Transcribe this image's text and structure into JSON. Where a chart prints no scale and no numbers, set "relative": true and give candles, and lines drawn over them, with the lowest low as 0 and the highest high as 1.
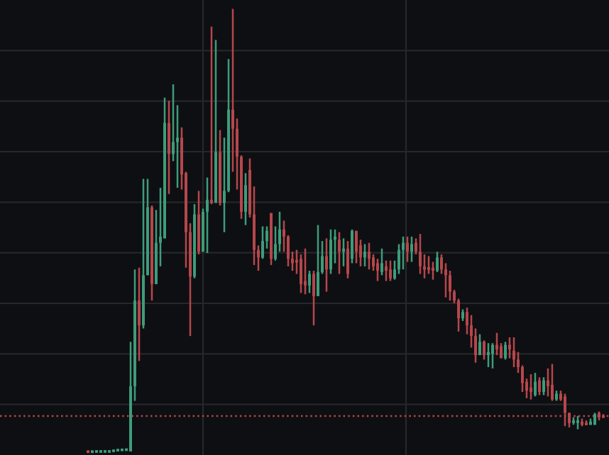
{
  "chart_data": {
    "type": "candlestick",
    "relative": true,
    "grid": true,
    "colors": [
      "#b5474b",
      "#3e9c7a",
      "#3e9c7a",
      "#3e9c7a",
      "#3e9c7a",
      "#3e9c7a",
      "#3e9c7a",
      "#3e9c7a",
      "#3e9c7a",
      "#3e9c7a",
      "#3e9c7a",
      "#3e9c7a",
      "#b5474b",
      "#3e9c7a",
      "#3e9c7a",
      "#b5474b",
      "#3e9c7a",
      "#3e9c7a",
      "#3e9c7a",
      "#b5474b",
      "#3e9c7a",
      "#3e9c7a",
      "#b5474b",
      "#b5474b",
      "#b5474b",
      "#3e9c7a",
      "#b5474b",
      "#3e9c7a",
      "#3e9c7a",
      "#b5474b",
      "#3e9c7a",
      "#b5474b",
      "#3e9c7a",
      "#3e9c7a",
      "#b5474b",
      "#b5474b",
      "#b5474b",
      "#3e9c7a",
      "#b5474b",
      "#b5474b",
      "#b5474b",
      "#3e9c7a",
      "#3e9c7a",
      "#b5474b",
      "#3e9c7a",
      "#3e9c7a",
      "#b5474b",
      "#b5474b",
      "#b5474b",
      "#b5474b",
      "#b5474b",
      "#b5474b",
      "#3e9c7a",
      "#b5474b",
      "#3e9c7a",
      "#3e9c7a",
      "#b5474b",
      "#3e9c7a",
      "#3e9c7a",
      "#b5474b",
      "#3e9c7a",
      "#b5474b",
      "#3e9c7a",
      "#b5474b",
      "#b5474b",
      "#3e9c7a",
      "#b5474b",
      "#b5474b",
      "#b5474b",
      "#3e9c7a",
      "#b5474b",
      "#b5474b",
      "#3e9c7a",
      "#3e9c7a",
      "#3e9c7a",
      "#b5474b",
      "#3e9c7a",
      "#b5474b",
      "#b5474b",
      "#b5474b",
      "#b5474b",
      "#b5474b",
      "#3e9c7a",
      "#b5474b",
      "#b5474b",
      "#b5474b",
      "#b5474b",
      "#b5474b",
      "#3e9c7a",
      "#b5474b",
      "#b5474b",
      "#b5474b",
      "#3e9c7a",
      "#b5474b",
      "#3e9c7a",
      "#3e9c7a",
      "#b5474b",
      "#b5474b",
      "#3e9c7a",
      "#b5474b",
      "#b5474b",
      "#b5474b",
      "#b5474b",
      "#b5474b",
      "#b5474b",
      "#3e9c7a",
      "#b5474b",
      "#3e9c7a",
      "#b5474b",
      "#b5474b",
      "#3e9c7a",
      "#b5474b",
      "#b5474b",
      "#b5474b",
      "#3e9c7a",
      "#3e9c7a",
      "#b5474b",
      "#b5474b",
      "#3e9c7a",
      "#3e9c7a",
      "#b5474b",
      "#b5474b"
    ],
    "categories": [
      null,
      null,
      null,
      null,
      null,
      null,
      null,
      null,
      null,
      null,
      null,
      null,
      null,
      null,
      null,
      null,
      null,
      null,
      null,
      null,
      null,
      null,
      null,
      null,
      null,
      null,
      null,
      null,
      null,
      null,
      null,
      null,
      null,
      null,
      null,
      null,
      null,
      null,
      null,
      null,
      null,
      null,
      null,
      null,
      null,
      null,
      null,
      null,
      null,
      null,
      null,
      null,
      null,
      null,
      null,
      null,
      null,
      null,
      null,
      null,
      null,
      null,
      null,
      null,
      null,
      null,
      null,
      null,
      null,
      null,
      null,
      null,
      null,
      null,
      null,
      null,
      null,
      null,
      null,
      null,
      null,
      null,
      null,
      null,
      null,
      null,
      null,
      null,
      null,
      null,
      null,
      null,
      null,
      null,
      null,
      null,
      null,
      null,
      null,
      null,
      null,
      null,
      null,
      null,
      null,
      null,
      null,
      null,
      null,
      null,
      null,
      null,
      null,
      null,
      null,
      null,
      null,
      null,
      null,
      null,
      null,
      null
    ],
    "ohlc": [
      [
        0.003,
        0.005,
        0,
        0.002
      ],
      [
        0.002,
        0.005,
        0.002,
        0.003
      ],
      [
        0.003,
        0.005,
        0.002,
        0.003
      ],
      [
        0.003,
        0.005,
        0.002,
        0.003
      ],
      [
        0.003,
        0.005,
        0.002,
        0.003
      ],
      [
        0.003,
        0.005,
        0.002,
        0.003
      ],
      [
        0.003,
        0.006,
        0.003,
        0.006
      ],
      [
        0.006,
        0.007,
        0.005,
        0.006
      ],
      [
        0.006,
        0.007,
        0.005,
        0.007
      ],
      [
        0.007,
        0.008,
        0.006,
        0.007
      ],
      [
        0.003,
        0.25,
        0.003,
        0.15
      ],
      [
        0.15,
        0.413,
        0.117,
        0.343
      ],
      [
        0.343,
        0.417,
        0.207,
        0.287
      ],
      [
        0.287,
        0.617,
        0.28,
        0.4
      ],
      [
        0.4,
        0.617,
        0.4,
        0.553
      ],
      [
        0.553,
        0.557,
        0.343,
        0.38
      ],
      [
        0.38,
        0.547,
        0.38,
        0.473
      ],
      [
        0.473,
        0.597,
        0.42,
        0.487
      ],
      [
        0.483,
        0.8,
        0.483,
        0.743
      ],
      [
        0.743,
        0.793,
        0.583,
        0.673
      ],
      [
        0.673,
        0.83,
        0.657,
        0.7
      ],
      [
        0.7,
        0.783,
        0.597,
        0.71
      ],
      [
        0.71,
        0.733,
        0.593,
        0.627
      ],
      [
        0.63,
        0.633,
        0.417,
        0.497
      ],
      [
        0.497,
        0.517,
        0.263,
        0.397
      ],
      [
        0.397,
        0.56,
        0.393,
        0.537
      ],
      [
        0.537,
        0.59,
        0.447,
        0.453
      ],
      [
        0.453,
        0.55,
        0.453,
        0.543
      ],
      [
        0.543,
        0.62,
        0.45,
        0.57
      ],
      [
        0.57,
        0.96,
        0.56,
        0.563
      ],
      [
        0.563,
        0.93,
        0.563,
        0.677
      ],
      [
        0.677,
        0.727,
        0.557,
        0.563
      ],
      [
        0.563,
        0.71,
        0.497,
        0.59
      ],
      [
        0.59,
        0.887,
        0.587,
        0.773
      ],
      [
        0.773,
        1,
        0.633,
        0.73
      ],
      [
        0.73,
        0.753,
        0.593,
        0.667
      ],
      [
        0.667,
        0.67,
        0.527,
        0.543
      ],
      [
        0.543,
        0.63,
        0.513,
        0.603
      ],
      [
        0.637,
        0.663,
        0.53,
        0.537
      ],
      [
        0.537,
        0.6,
        0.423,
        0.457
      ],
      [
        0.457,
        0.467,
        0.41,
        0.44
      ],
      [
        0.44,
        0.51,
        0.437,
        0.477
      ],
      [
        0.477,
        0.51,
        0.46,
        0.5
      ],
      [
        0.54,
        0.54,
        0.423,
        0.437
      ],
      [
        0.437,
        0.51,
        0.433,
        0.47
      ],
      [
        0.47,
        0.543,
        0.453,
        0.503
      ],
      [
        0.503,
        0.523,
        0.453,
        0.487
      ],
      [
        0.487,
        0.49,
        0.42,
        0.437
      ],
      [
        0.437,
        0.453,
        0.41,
        0.427
      ],
      [
        0.433,
        0.457,
        0.403,
        0.43
      ],
      [
        0.437,
        0.447,
        0.36,
        0.38
      ],
      [
        0.387,
        0.46,
        0.357,
        0.377
      ],
      [
        0.377,
        0.41,
        0.36,
        0.403
      ],
      [
        0.403,
        0.41,
        0.287,
        0.353
      ],
      [
        0.353,
        0.513,
        0.353,
        0.407
      ],
      [
        0.407,
        0.477,
        0.403,
        0.443
      ],
      [
        0.443,
        0.483,
        0.363,
        0.413
      ],
      [
        0.413,
        0.503,
        0.403,
        0.48
      ],
      [
        0.48,
        0.503,
        0.427,
        0.487
      ],
      [
        0.48,
        0.497,
        0.403,
        0.453
      ],
      [
        0.453,
        0.483,
        0.42,
        0.46
      ],
      [
        0.46,
        0.477,
        0.393,
        0.403
      ],
      [
        0.437,
        0.503,
        0.427,
        0.5
      ],
      [
        0.5,
        0.5,
        0.427,
        0.453
      ],
      [
        0.467,
        0.48,
        0.42,
        0.44
      ],
      [
        0.44,
        0.47,
        0.42,
        0.453
      ],
      [
        0.453,
        0.473,
        0.413,
        0.437
      ],
      [
        0.44,
        0.447,
        0.41,
        0.42
      ],
      [
        0.427,
        0.437,
        0.387,
        0.41
      ],
      [
        0.407,
        0.46,
        0.4,
        0.427
      ],
      [
        0.42,
        0.433,
        0.387,
        0.41
      ],
      [
        0.413,
        0.433,
        0.387,
        0.393
      ],
      [
        0.393,
        0.433,
        0.39,
        0.413
      ],
      [
        0.413,
        0.47,
        0.403,
        0.457
      ],
      [
        0.457,
        0.487,
        0.413,
        0.473
      ],
      [
        0.473,
        0.487,
        0.43,
        0.453
      ],
      [
        0.453,
        0.487,
        0.43,
        0.47
      ],
      [
        0.473,
        0.483,
        0.447,
        0.453
      ],
      [
        0.453,
        0.493,
        0.403,
        0.42
      ],
      [
        0.42,
        0.447,
        0.393,
        0.413
      ],
      [
        0.417,
        0.443,
        0.403,
        0.413
      ],
      [
        0.417,
        0.43,
        0.39,
        0.41
      ],
      [
        0.41,
        0.453,
        0.407,
        0.44
      ],
      [
        0.44,
        0.447,
        0.403,
        0.413
      ],
      [
        0.413,
        0.427,
        0.35,
        0.4
      ],
      [
        0.4,
        0.41,
        0.343,
        0.363
      ],
      [
        0.363,
        0.367,
        0.337,
        0.343
      ],
      [
        0.343,
        0.347,
        0.273,
        0.303
      ],
      [
        0.303,
        0.323,
        0.297,
        0.317
      ],
      [
        0.317,
        0.327,
        0.267,
        0.287
      ],
      [
        0.287,
        0.31,
        0.237,
        0.263
      ],
      [
        0.263,
        0.28,
        0.203,
        0.22
      ],
      [
        0.22,
        0.267,
        0.22,
        0.25
      ],
      [
        0.25,
        0.253,
        0.21,
        0.22
      ],
      [
        0.22,
        0.247,
        0.193,
        0.227
      ],
      [
        0.223,
        0.247,
        0.19,
        0.243
      ],
      [
        0.243,
        0.27,
        0.22,
        0.233
      ],
      [
        0.24,
        0.247,
        0.213,
        0.213
      ],
      [
        0.213,
        0.25,
        0.21,
        0.243
      ],
      [
        0.243,
        0.26,
        0.213,
        0.233
      ],
      [
        0.23,
        0.26,
        0.193,
        0.21
      ],
      [
        0.21,
        0.227,
        0.18,
        0.193
      ],
      [
        0.193,
        0.197,
        0.137,
        0.157
      ],
      [
        0.16,
        0.167,
        0.123,
        0.14
      ],
      [
        0.147,
        0.177,
        0.12,
        0.137
      ],
      [
        0.13,
        0.18,
        0.127,
        0.16
      ],
      [
        0.163,
        0.17,
        0.13,
        0.137
      ],
      [
        0.137,
        0.17,
        0.13,
        0.163
      ],
      [
        0.163,
        0.19,
        0.127,
        0.15
      ],
      [
        0.153,
        0.2,
        0.117,
        0.12
      ],
      [
        0.12,
        0.14,
        0.117,
        0.133
      ],
      [
        0.133,
        0.14,
        0.117,
        0.12
      ],
      [
        0.127,
        0.133,
        0.06,
        0.09
      ],
      [
        0.09,
        0.09,
        0.057,
        0.067
      ],
      [
        0.067,
        0.08,
        0.063,
        0.073
      ],
      [
        0.07,
        0.083,
        0.053,
        0.07
      ],
      [
        0.07,
        0.077,
        0.06,
        0.063
      ],
      [
        0.067,
        0.073,
        0.063,
        0.063
      ],
      [
        0.063,
        0.077,
        0.063,
        0.07
      ],
      [
        0.063,
        0.09,
        0.063,
        0.087
      ],
      [
        0.09,
        0.093,
        0.073,
        0.08
      ],
      [
        0.083,
        0.087,
        0.08,
        0.08
      ]
    ],
    "ref_lines": [
      {
        "axis": "y",
        "value": 0.083,
        "color": "#b5474b",
        "line_style": "dotted"
      }
    ]
  }
}
